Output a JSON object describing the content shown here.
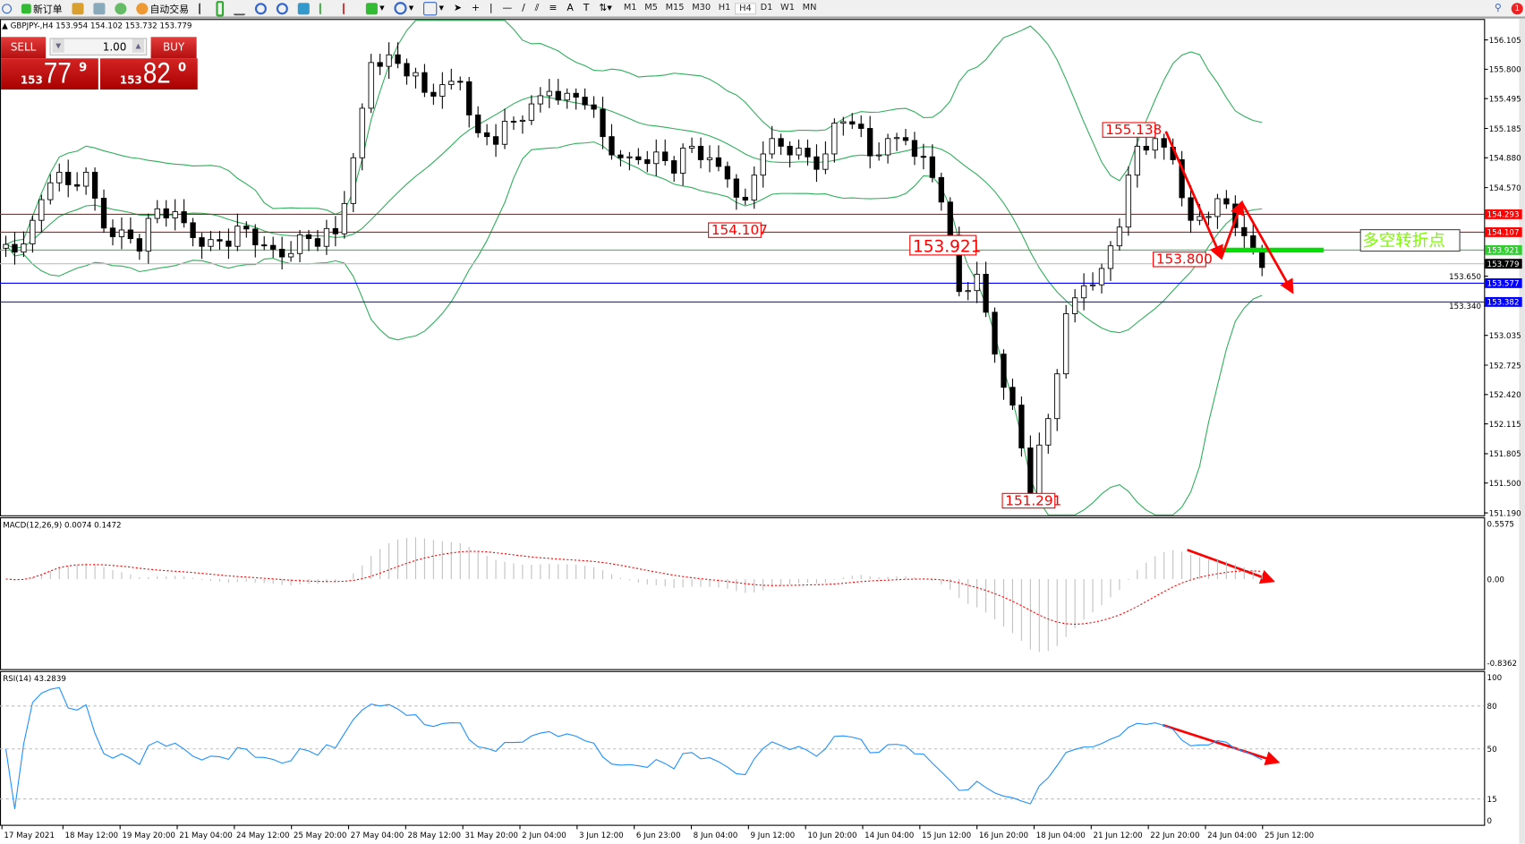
{
  "toolbar": {
    "new_order": "新订单",
    "auto_trading": "自动交易",
    "timeframes": [
      "M1",
      "M5",
      "M15",
      "M30",
      "H1",
      "H4",
      "D1",
      "W1",
      "MN"
    ],
    "active_timeframe": "H4",
    "notification_count": "1"
  },
  "symbol_info": "GBPJPY-,H4  153.954 154.102 153.732 153.779",
  "trade_panel": {
    "sell_label": "SELL",
    "buy_label": "BUY",
    "lot": "1.00",
    "sell_price": {
      "big": "153",
      "main": "77",
      "sup": "9"
    },
    "buy_price": {
      "big": "153",
      "main": "82",
      "sup": "0"
    }
  },
  "chart_data": {
    "type": "candlestick",
    "symbol": "GBPJPY-",
    "timeframe": "H4",
    "price_axis_ticks": [
      "156.105",
      "155.800",
      "155.495",
      "155.185",
      "154.880",
      "154.570",
      "153.650",
      "153.340",
      "153.035",
      "152.725",
      "152.420",
      "152.115",
      "151.805",
      "151.500",
      "151.190"
    ],
    "ylim": [
      151.19,
      156.105
    ],
    "x_tick_labels": [
      "17 May 2021",
      "18 May 12:00",
      "19 May 20:00",
      "21 May 04:00",
      "24 May 12:00",
      "25 May 20:00",
      "27 May 04:00",
      "28 May 12:00",
      "31 May 20:00",
      "2 Jun 04:00",
      "3 Jun 12:00",
      "6 Jun 23:00",
      "8 Jun 04:00",
      "9 Jun 12:00",
      "10 Jun 20:00",
      "14 Jun 04:00",
      "15 Jun 12:00",
      "16 Jun 20:00",
      "18 Jun 04:00",
      "21 Jun 12:00",
      "22 Jun 20:00",
      "24 Jun 04:00",
      "25 Jun 12:00"
    ],
    "closes": [
      153.94,
      154.19,
      154.7,
      154.6,
      154.65,
      154.19,
      154.09,
      153.99,
      154.35,
      154.24,
      154.09,
      153.99,
      154.04,
      154.14,
      153.89,
      153.89,
      154.04,
      154.04,
      154.09,
      154.8,
      155.91,
      155.91,
      155.81,
      155.56,
      155.56,
      155.71,
      155.1,
      155.1,
      155.26,
      155.36,
      155.61,
      155.51,
      155.51,
      155.1,
      154.8,
      154.9,
      154.9,
      154.8,
      155.0,
      154.8,
      154.7,
      154.4,
      155.0,
      155.0,
      154.9,
      154.8,
      155.2,
      155.31,
      154.9,
      155.0,
      155.1,
      154.85,
      154.5,
      153.49,
      153.59,
      152.88,
      152.27,
      151.46,
      152.17,
      153.18,
      153.59,
      153.69,
      154.24,
      155.0,
      155.0,
      154.9,
      154.19,
      154.35,
      154.4,
      153.99,
      153.78
    ],
    "horizontal_lines": [
      {
        "price": "154.293",
        "color": "#ff0000"
      },
      {
        "price": "154.107",
        "color": "#ff0000"
      },
      {
        "price": "153.921",
        "color": "#33cc33"
      },
      {
        "price": "153.779",
        "color": "#c0c0c0",
        "label_bg": "#000000"
      },
      {
        "price": "153.577",
        "color": "#0000ff"
      },
      {
        "price": "153.382",
        "color": "#0000ff"
      }
    ],
    "annotations": [
      "155.138",
      "154.107",
      "153.921",
      "153.800",
      "151.291"
    ],
    "turning_point_label": "多空转折点",
    "indicators": {
      "bollinger_color": "#2eae5a",
      "macd": {
        "label": "MACD(12,26,9) 0.0074 0.1472",
        "ticks": [
          "0.5575",
          "0.00",
          "-0.8362"
        ],
        "ylim": [
          -0.8362,
          0.5575
        ],
        "signal_color": "#ff0000",
        "hist_color": "#c0c0c0"
      },
      "rsi": {
        "label": "RSI(14) 43.2839",
        "ticks": [
          "100",
          "80",
          "50",
          "15",
          "0"
        ],
        "levels": [
          80,
          50,
          15
        ],
        "color": "#1e90ff"
      }
    }
  }
}
